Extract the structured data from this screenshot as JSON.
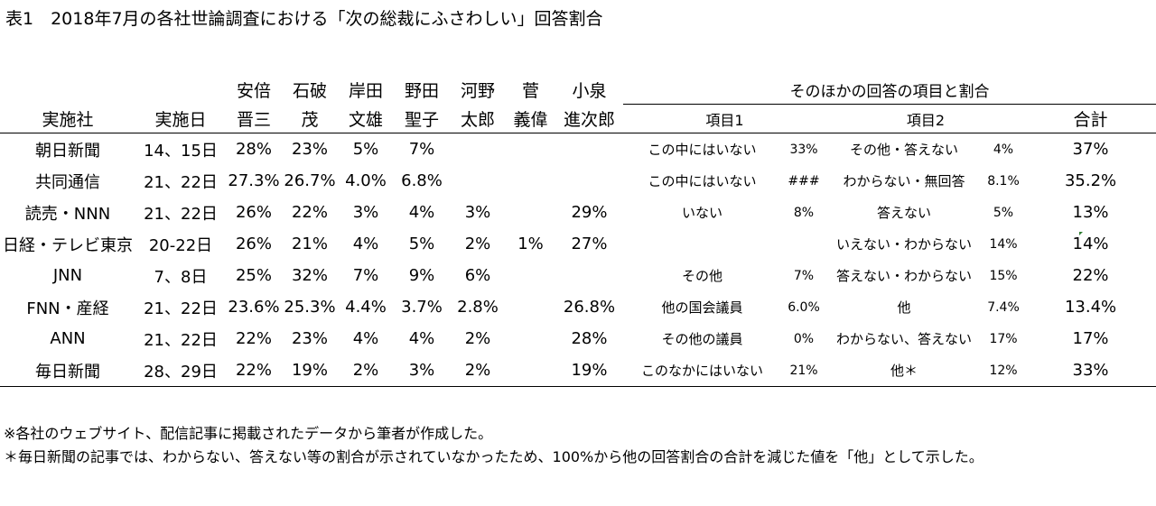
{
  "title": "表1　2018年7月の各社世論調査における「次の総裁にふさわしい」回答割合",
  "headers": {
    "company": "実施社",
    "date": "実施日",
    "candidates": [
      {
        "top": "安倍",
        "bottom": "晋三"
      },
      {
        "top": "石破",
        "bottom": "茂"
      },
      {
        "top": "岸田",
        "bottom": "文雄"
      },
      {
        "top": "野田",
        "bottom": "聖子"
      },
      {
        "top": "河野",
        "bottom": "太郎"
      },
      {
        "top": "菅",
        "bottom": "義偉"
      },
      {
        "top": "小泉",
        "bottom": "進次郎"
      }
    ],
    "other_group": "そのほかの回答の項目と割合",
    "item1": "項目1",
    "item2": "項目2",
    "total": "合計"
  },
  "rows": [
    {
      "company": "朝日新聞",
      "date": "14、15日",
      "abe": "28%",
      "ishiba": "23%",
      "kishida": "5%",
      "noda": "7%",
      "kono": "",
      "suga": "",
      "koizumi": "",
      "item1": "この中にはいない",
      "pct1": "33%",
      "item2": "その他・答えない",
      "pct2": "4%",
      "total": "37%"
    },
    {
      "company": "共同通信",
      "date": "21、22日",
      "abe": "27.3%",
      "ishiba": "26.7%",
      "kishida": "4.0%",
      "noda": "6.8%",
      "kono": "",
      "suga": "",
      "koizumi": "",
      "item1": "この中にはいない",
      "pct1": "###",
      "item2": "わからない・無回答",
      "pct2": "8.1%",
      "total": "35.2%"
    },
    {
      "company": "読売・NNN",
      "date": "21、22日",
      "abe": "26%",
      "ishiba": "22%",
      "kishida": "3%",
      "noda": "4%",
      "kono": "3%",
      "suga": "",
      "koizumi": "29%",
      "item1": "いない",
      "pct1": "8%",
      "item2": "答えない",
      "pct2": "5%",
      "total": "13%"
    },
    {
      "company": "日経・テレビ東京",
      "date": "20-22日",
      "abe": "26%",
      "ishiba": "21%",
      "kishida": "4%",
      "noda": "5%",
      "kono": "2%",
      "suga": "1%",
      "koizumi": "27%",
      "item1": "",
      "pct1": "",
      "item2": "いえない・わからない",
      "pct2": "14%",
      "total": "14%"
    },
    {
      "company": "JNN",
      "date": "7、8日",
      "abe": "25%",
      "ishiba": "32%",
      "kishida": "7%",
      "noda": "9%",
      "kono": "6%",
      "suga": "",
      "koizumi": "",
      "item1": "その他",
      "pct1": "7%",
      "item2": "答えない・わからない",
      "pct2": "15%",
      "total": "22%"
    },
    {
      "company": "FNN・産経",
      "date": "21、22日",
      "abe": "23.6%",
      "ishiba": "25.3%",
      "kishida": "4.4%",
      "noda": "3.7%",
      "kono": "2.8%",
      "suga": "",
      "koizumi": "26.8%",
      "item1": "他の国会議員",
      "pct1": "6.0%",
      "item2": "他",
      "pct2": "7.4%",
      "total": "13.4%"
    },
    {
      "company": "ANN",
      "date": "21、22日",
      "abe": "22%",
      "ishiba": "23%",
      "kishida": "4%",
      "noda": "4%",
      "kono": "2%",
      "suga": "",
      "koizumi": "28%",
      "item1": "その他の議員",
      "pct1": "0%",
      "item2": "わからない、答えない",
      "pct2": "17%",
      "total": "17%"
    },
    {
      "company": "毎日新聞",
      "date": "28、29日",
      "abe": "22%",
      "ishiba": "19%",
      "kishida": "2%",
      "noda": "3%",
      "kono": "2%",
      "suga": "",
      "koizumi": "19%",
      "item1": "このなかにはいない",
      "pct1": "21%",
      "item2": "他＊",
      "pct2": "12%",
      "total": "33%"
    }
  ],
  "footnotes": [
    "※各社のウェブサイト、配信記事に掲載されたデータから筆者が作成した。",
    "＊毎日新聞の記事では、わからない、答えない等の割合が示されていなかったため、100%から他の回答割合の合計を減じた値を「他」として示した。"
  ]
}
